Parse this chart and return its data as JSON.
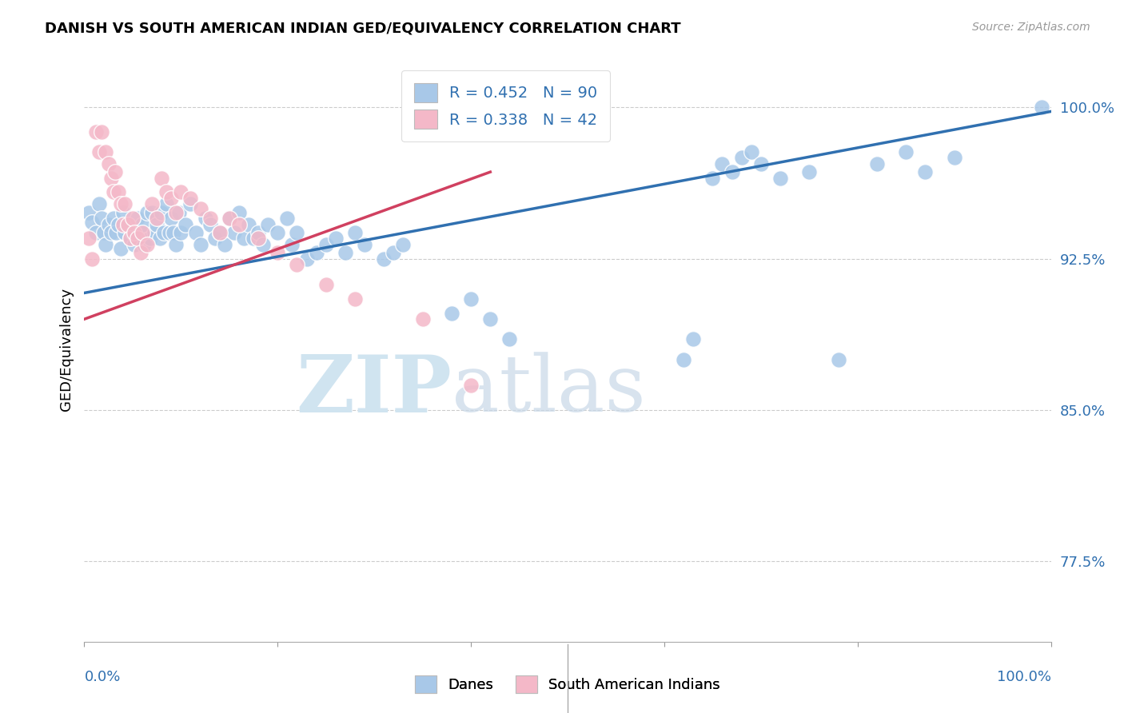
{
  "title": "DANISH VS SOUTH AMERICAN INDIAN GED/EQUIVALENCY CORRELATION CHART",
  "source": "Source: ZipAtlas.com",
  "ylabel": "GED/Equivalency",
  "ytick_labels": [
    "77.5%",
    "85.0%",
    "92.5%",
    "100.0%"
  ],
  "ytick_values": [
    0.775,
    0.85,
    0.925,
    1.0
  ],
  "xlim": [
    0.0,
    1.0
  ],
  "ylim": [
    0.735,
    1.025
  ],
  "legend_blue_label": "R = 0.452   N = 90",
  "legend_pink_label": "R = 0.338   N = 42",
  "legend_bottom_blue": "Danes",
  "legend_bottom_pink": "South American Indians",
  "blue_color": "#a8c8e8",
  "pink_color": "#f4b8c8",
  "blue_line_color": "#3070b0",
  "pink_line_color": "#d04060",
  "blue_fill": "#a8c8e8",
  "pink_fill": "#f4b8c8",
  "watermark_zip": "ZIP",
  "watermark_atlas": "atlas",
  "danes_x": [
    0.005,
    0.008,
    0.012,
    0.015,
    0.018,
    0.02,
    0.022,
    0.025,
    0.028,
    0.03,
    0.033,
    0.035,
    0.038,
    0.04,
    0.042,
    0.045,
    0.048,
    0.05,
    0.052,
    0.055,
    0.058,
    0.06,
    0.062,
    0.065,
    0.068,
    0.07,
    0.072,
    0.075,
    0.078,
    0.08,
    0.082,
    0.085,
    0.088,
    0.09,
    0.092,
    0.095,
    0.098,
    0.1,
    0.105,
    0.11,
    0.115,
    0.12,
    0.125,
    0.13,
    0.135,
    0.14,
    0.145,
    0.15,
    0.155,
    0.16,
    0.165,
    0.17,
    0.175,
    0.18,
    0.185,
    0.19,
    0.2,
    0.21,
    0.215,
    0.22,
    0.23,
    0.24,
    0.25,
    0.26,
    0.27,
    0.28,
    0.29,
    0.31,
    0.32,
    0.33,
    0.38,
    0.4,
    0.42,
    0.44,
    0.62,
    0.63,
    0.65,
    0.66,
    0.67,
    0.68,
    0.69,
    0.7,
    0.72,
    0.75,
    0.78,
    0.82,
    0.85,
    0.87,
    0.9,
    0.99
  ],
  "danes_y": [
    0.948,
    0.943,
    0.938,
    0.952,
    0.945,
    0.938,
    0.932,
    0.942,
    0.938,
    0.945,
    0.938,
    0.942,
    0.93,
    0.948,
    0.938,
    0.942,
    0.935,
    0.938,
    0.932,
    0.945,
    0.938,
    0.942,
    0.932,
    0.948,
    0.935,
    0.948,
    0.938,
    0.942,
    0.935,
    0.948,
    0.938,
    0.952,
    0.938,
    0.945,
    0.938,
    0.932,
    0.948,
    0.938,
    0.942,
    0.952,
    0.938,
    0.932,
    0.945,
    0.942,
    0.935,
    0.938,
    0.932,
    0.945,
    0.938,
    0.948,
    0.935,
    0.942,
    0.935,
    0.938,
    0.932,
    0.942,
    0.938,
    0.945,
    0.932,
    0.938,
    0.925,
    0.928,
    0.932,
    0.935,
    0.928,
    0.938,
    0.932,
    0.925,
    0.928,
    0.932,
    0.898,
    0.905,
    0.895,
    0.885,
    0.875,
    0.885,
    0.965,
    0.972,
    0.968,
    0.975,
    0.978,
    0.972,
    0.965,
    0.968,
    0.875,
    0.972,
    0.978,
    0.968,
    0.975,
    1.0
  ],
  "sai_x": [
    0.005,
    0.008,
    0.012,
    0.015,
    0.018,
    0.022,
    0.025,
    0.028,
    0.03,
    0.032,
    0.035,
    0.038,
    0.04,
    0.042,
    0.045,
    0.048,
    0.05,
    0.052,
    0.055,
    0.058,
    0.06,
    0.065,
    0.07,
    0.075,
    0.08,
    0.085,
    0.09,
    0.095,
    0.1,
    0.11,
    0.12,
    0.13,
    0.14,
    0.15,
    0.16,
    0.18,
    0.2,
    0.22,
    0.25,
    0.28,
    0.35,
    0.4
  ],
  "sai_y": [
    0.935,
    0.925,
    0.988,
    0.978,
    0.988,
    0.978,
    0.972,
    0.965,
    0.958,
    0.968,
    0.958,
    0.952,
    0.942,
    0.952,
    0.942,
    0.935,
    0.945,
    0.938,
    0.935,
    0.928,
    0.938,
    0.932,
    0.952,
    0.945,
    0.965,
    0.958,
    0.955,
    0.948,
    0.958,
    0.955,
    0.95,
    0.945,
    0.938,
    0.945,
    0.942,
    0.935,
    0.928,
    0.922,
    0.912,
    0.905,
    0.895,
    0.862
  ],
  "blue_trendline": [
    0.0,
    1.0,
    0.908,
    0.998
  ],
  "pink_trendline": [
    0.0,
    0.42,
    0.895,
    0.968
  ]
}
